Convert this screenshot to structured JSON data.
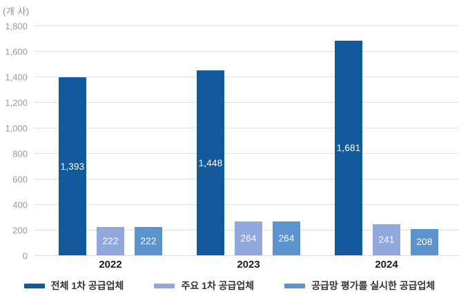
{
  "unit_label": "(개 사)",
  "colors": {
    "series_total": "#125a9c",
    "series_major": "#91a8dc",
    "series_assessed": "#5c95ce",
    "grid": "#e2e2e2",
    "tick_text": "#9b9b9b",
    "xlabel_text": "#1a1a1a",
    "value_label_text": "#ffffff"
  },
  "chart_data": {
    "type": "bar",
    "title": "",
    "unit": "(개 사)",
    "categories": [
      "2022",
      "2023",
      "2024"
    ],
    "series": [
      {
        "name": "전체 1차 공급업체",
        "color": "#125a9c",
        "values": [
          1393,
          1448,
          1681
        ],
        "labels": [
          "1,393",
          "1,448",
          "1,681"
        ]
      },
      {
        "name": "주요 1차 공급업체",
        "color": "#91a8dc",
        "values": [
          222,
          264,
          241
        ],
        "labels": [
          "222",
          "264",
          "241"
        ]
      },
      {
        "name": "공급망 평가를 실시한 공급업체",
        "color": "#5c95ce",
        "values": [
          222,
          264,
          208
        ],
        "labels": [
          "222",
          "264",
          "208"
        ]
      }
    ],
    "ylim": [
      0,
      1800
    ],
    "ytick_step": 200,
    "yticks": [
      "0",
      "200",
      "400",
      "600",
      "800",
      "1,000",
      "1,200",
      "1,400",
      "1,600",
      "1,800"
    ],
    "grid": true,
    "legend_position": "bottom"
  }
}
